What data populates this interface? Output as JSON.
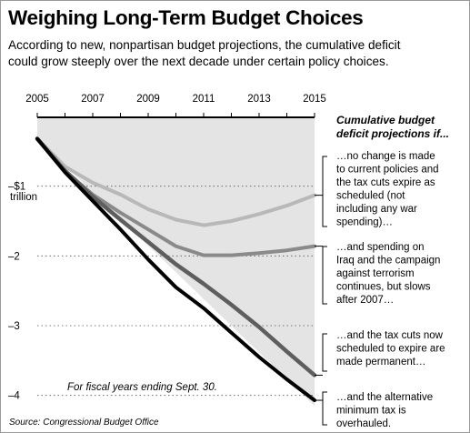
{
  "title": "Weighing Long-Term Budget Choices",
  "subtitle": "According to new, nonpartisan budget projections, the cumulative deficit\ncould grow steeply over the next decade under certain policy choices.",
  "note": "For fiscal years ending Sept. 30.",
  "source": "Source: Congressional Budget Office",
  "annotation_heading": [
    "Cumulative budget",
    "deficit projections if..."
  ],
  "annotations": [
    [
      "...no change is made",
      "to current policies and",
      "the tax cuts expire as",
      "scheduled (not",
      "including any war",
      "spending)..."
    ],
    [
      "...and spending on",
      "Iraq and the campaign",
      "against terrorism",
      "continues, but slows",
      "after 2007..."
    ],
    [
      "...and the tax cuts now",
      "scheduled to expire are",
      "made permanent..."
    ],
    [
      "...and the alternative",
      "minimum tax is",
      "overhauled."
    ]
  ],
  "colors": {
    "shade": "#e4e4e4",
    "series": [
      "#b8b8b8",
      "#8a8a8a",
      "#5e5e5e",
      "#000000"
    ]
  },
  "chart_data": {
    "type": "line",
    "title": "Weighing Long-Term Budget Choices",
    "ylabel_unit": "trillion",
    "x": [
      2005,
      2006,
      2007,
      2008,
      2009,
      2010,
      2011,
      2012,
      2013,
      2014,
      2015
    ],
    "xticks": [
      "2005",
      "2007",
      "2009",
      "2011",
      "2013",
      "2015"
    ],
    "yticks": [
      {
        "value": -1,
        "label": "–$1"
      },
      {
        "value": -2,
        "label": "–2"
      },
      {
        "value": -3,
        "label": "–3"
      },
      {
        "value": -4,
        "label": "–4"
      }
    ],
    "ylim": [
      -4.15,
      0
    ],
    "grid": "dotted horizontal",
    "series": [
      {
        "values": [
          -0.32,
          -0.72,
          -0.95,
          -1.12,
          -1.33,
          -1.48,
          -1.56,
          -1.5,
          -1.4,
          -1.28,
          -1.13
        ]
      },
      {
        "values": [
          -0.32,
          -0.78,
          -1.12,
          -1.38,
          -1.62,
          -1.86,
          -1.99,
          -1.99,
          -1.96,
          -1.92,
          -1.86
        ]
      },
      {
        "values": [
          -0.32,
          -0.78,
          -1.15,
          -1.48,
          -1.8,
          -2.12,
          -2.4,
          -2.7,
          -3.02,
          -3.37,
          -3.71
        ]
      },
      {
        "values": [
          -0.32,
          -0.8,
          -1.21,
          -1.62,
          -2.05,
          -2.45,
          -2.75,
          -3.1,
          -3.45,
          -3.77,
          -4.07
        ]
      }
    ]
  }
}
